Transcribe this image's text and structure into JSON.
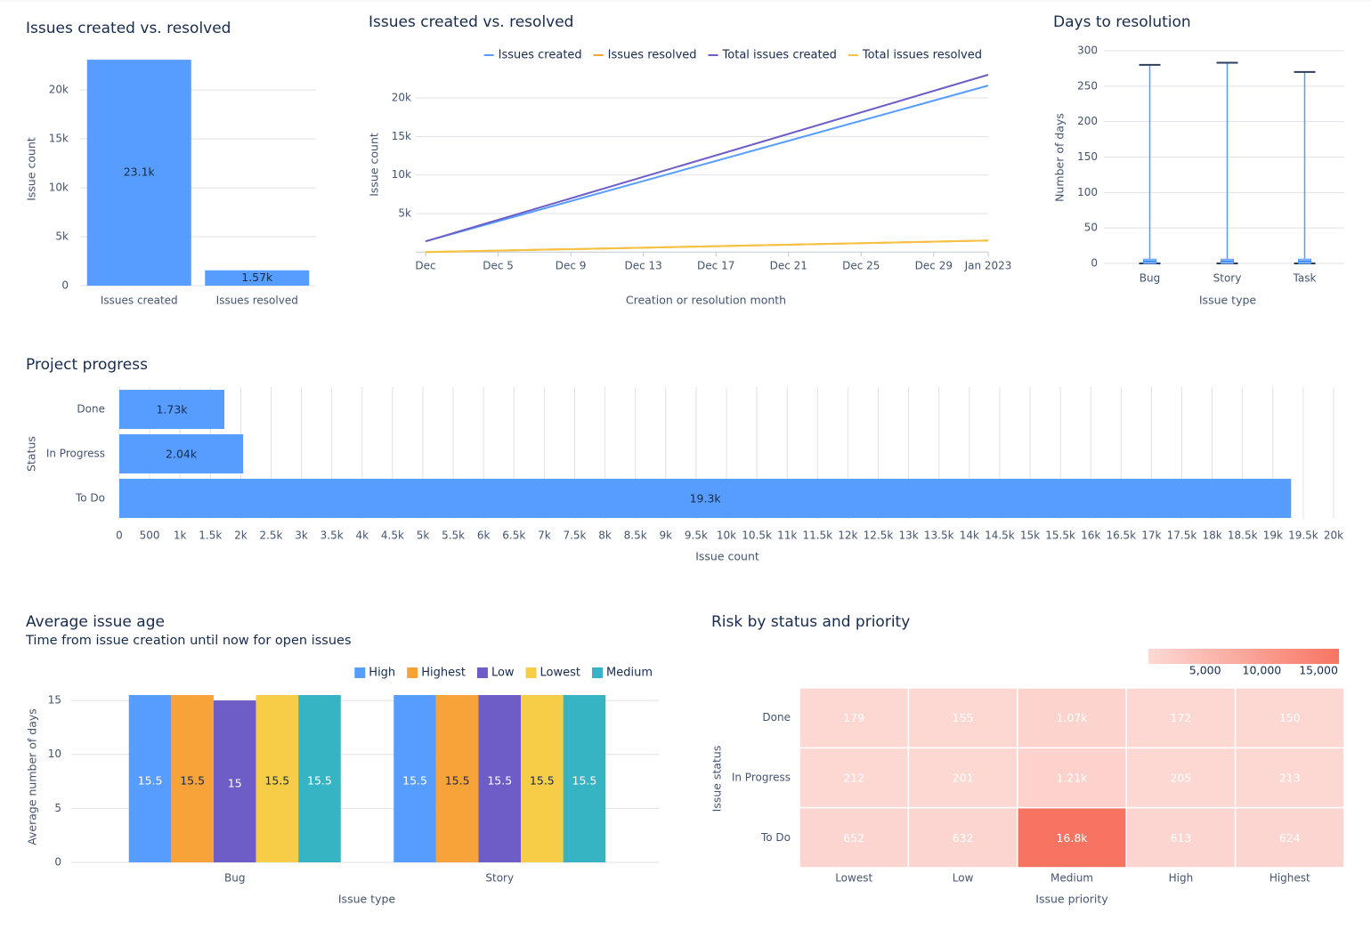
{
  "chart_data": [
    {
      "type": "bar",
      "title": "Issues created vs. resolved",
      "ylabel": "Issue count",
      "categories": [
        "Issues created",
        "Issues resolved"
      ],
      "values": [
        23100,
        1570
      ],
      "value_labels": [
        "23.1k",
        "1.57k"
      ],
      "color": "#579dff",
      "ylim": [
        0,
        23200
      ],
      "yticks": [
        0,
        {
          "value": 5000,
          "label": "5k"
        },
        {
          "value": 10000,
          "label": "10k"
        },
        {
          "value": 15000,
          "label": "15k"
        },
        {
          "value": 20000,
          "label": "20k"
        }
      ],
      "grid": true
    },
    {
      "type": "line",
      "title": "Issues created vs. resolved",
      "ylabel": "Issue count",
      "xlabel": "Creation or resolution month",
      "x": [
        0,
        31
      ],
      "xlim": [
        0,
        31
      ],
      "xticks": [
        {
          "value": 0,
          "label": "Dec"
        },
        {
          "value": 4,
          "label": "Dec 5"
        },
        {
          "value": 8,
          "label": "Dec 9"
        },
        {
          "value": 12,
          "label": "Dec 13"
        },
        {
          "value": 16,
          "label": "Dec 17"
        },
        {
          "value": 20,
          "label": "Dec 21"
        },
        {
          "value": 24,
          "label": "Dec 25"
        },
        {
          "value": 28,
          "label": "Dec 29"
        },
        {
          "value": 31,
          "label": "Jan 2023"
        }
      ],
      "ylim": [
        0,
        23000
      ],
      "yticks": [
        {
          "value": 5000,
          "label": "5k"
        },
        {
          "value": 10000,
          "label": "10k"
        },
        {
          "value": 15000,
          "label": "15k"
        },
        {
          "value": 20000,
          "label": "20k"
        }
      ],
      "grid": true,
      "legend": "top",
      "series": [
        {
          "name": "Issues created",
          "color": "#579dff",
          "values": [
            1400,
            21600
          ]
        },
        {
          "name": "Issues resolved",
          "color": "#f8a23a",
          "values": [
            0,
            1500
          ]
        },
        {
          "name": "Total issues created",
          "color": "#6e5dc6",
          "values": [
            1400,
            23000
          ]
        },
        {
          "name": "Total issues resolved",
          "color": "#f5c242",
          "values": [
            0,
            1500
          ]
        }
      ]
    },
    {
      "type": "box",
      "title": "Days to resolution",
      "ylabel": "Number of days",
      "xlabel": "Issue type",
      "categories": [
        "Bug",
        "Story",
        "Task"
      ],
      "min": [
        0,
        0,
        0
      ],
      "q1": [
        0,
        0,
        0
      ],
      "median": [
        3,
        3,
        3
      ],
      "q3": [
        6,
        6,
        6
      ],
      "max": [
        280,
        283,
        270
      ],
      "color": "#579dff",
      "ylim": [
        0,
        300
      ],
      "yticks": [
        0,
        50,
        100,
        150,
        200,
        250,
        300
      ],
      "grid": true
    },
    {
      "type": "bar",
      "horizontal": true,
      "title": "Project progress",
      "ylabel": "Status",
      "xlabel": "Issue count",
      "categories": [
        "Done",
        "In Progress",
        "To Do"
      ],
      "values": [
        1730,
        2040,
        19300
      ],
      "value_labels": [
        "1.73k",
        "2.04k",
        "19.3k"
      ],
      "color": "#579dff",
      "xlim": [
        0,
        20000
      ],
      "grid": true,
      "xticks": [
        0,
        500,
        {
          "value": 1000,
          "label": "1k"
        },
        {
          "value": 1500,
          "label": "1.5k"
        },
        {
          "value": 2000,
          "label": "2k"
        },
        {
          "value": 2500,
          "label": "2.5k"
        },
        {
          "value": 3000,
          "label": "3k"
        },
        {
          "value": 3500,
          "label": "3.5k"
        },
        {
          "value": 4000,
          "label": "4k"
        },
        {
          "value": 4500,
          "label": "4.5k"
        },
        {
          "value": 5000,
          "label": "5k"
        },
        {
          "value": 5500,
          "label": "5.5k"
        },
        {
          "value": 6000,
          "label": "6k"
        },
        {
          "value": 6500,
          "label": "6.5k"
        },
        {
          "value": 7000,
          "label": "7k"
        },
        {
          "value": 7500,
          "label": "7.5k"
        },
        {
          "value": 8000,
          "label": "8k"
        },
        {
          "value": 8500,
          "label": "8.5k"
        },
        {
          "value": 9000,
          "label": "9k"
        },
        {
          "value": 9500,
          "label": "9.5k"
        },
        {
          "value": 10000,
          "label": "10k"
        },
        {
          "value": 10500,
          "label": "10.5k"
        },
        {
          "value": 11000,
          "label": "11k"
        },
        {
          "value": 11500,
          "label": "11.5k"
        },
        {
          "value": 12000,
          "label": "12k"
        },
        {
          "value": 12500,
          "label": "12.5k"
        },
        {
          "value": 13000,
          "label": "13k"
        },
        {
          "value": 13500,
          "label": "13.5k"
        },
        {
          "value": 14000,
          "label": "14k"
        },
        {
          "value": 14500,
          "label": "14.5k"
        },
        {
          "value": 15000,
          "label": "15k"
        },
        {
          "value": 15500,
          "label": "15.5k"
        },
        {
          "value": 16000,
          "label": "16k"
        },
        {
          "value": 16500,
          "label": "16.5k"
        },
        {
          "value": 17000,
          "label": "17k"
        },
        {
          "value": 17500,
          "label": "17.5k"
        },
        {
          "value": 18000,
          "label": "18k"
        },
        {
          "value": 18500,
          "label": "18.5k"
        },
        {
          "value": 19000,
          "label": "19k"
        },
        {
          "value": 19500,
          "label": "19.5k"
        },
        {
          "value": 20000,
          "label": "20k"
        }
      ]
    },
    {
      "type": "bar",
      "title": "Average issue age",
      "subtitle": "Time from issue creation until now for open issues",
      "ylabel": "Average number of days",
      "xlabel": "Issue type",
      "categories": [
        "Bug",
        "Story"
      ],
      "legend": "top-right",
      "ylim": [
        0,
        15.5
      ],
      "yticks": [
        0,
        5,
        10,
        15
      ],
      "grid": true,
      "series": [
        {
          "name": "High",
          "color": "#579dff",
          "values": [
            15.5,
            15.5
          ]
        },
        {
          "name": "Highest",
          "color": "#f8a23a",
          "values": [
            15.5,
            15.5
          ]
        },
        {
          "name": "Low",
          "color": "#6e5dc6",
          "values": [
            15,
            15.5
          ]
        },
        {
          "name": "Lowest",
          "color": "#f5cd47",
          "values": [
            15.5,
            15.5
          ]
        },
        {
          "name": "Medium",
          "color": "#37b4c3",
          "values": [
            15.5,
            15.5
          ]
        }
      ]
    },
    {
      "type": "heatmap",
      "title": "Risk by status and priority",
      "xlabel": "Issue priority",
      "ylabel": "Issue status",
      "x": [
        "Lowest",
        "Low",
        "Medium",
        "High",
        "Highest"
      ],
      "y": [
        "Done",
        "In Progress",
        "To Do"
      ],
      "values": [
        [
          179,
          155,
          1070,
          172,
          150
        ],
        [
          212,
          201,
          1210,
          205,
          213
        ],
        [
          652,
          632,
          16800,
          613,
          624
        ]
      ],
      "value_labels": [
        [
          "179",
          "155",
          "1.07k",
          "172",
          "150"
        ],
        [
          "212",
          "201",
          "1.21k",
          "205",
          "213"
        ],
        [
          "652",
          "632",
          "16.8k",
          "613",
          "624"
        ]
      ],
      "colors": [
        "#fdd9d4",
        "#f87462"
      ],
      "zlim": [
        0,
        16800
      ],
      "zticks": [
        {
          "value": 5000,
          "label": "5,000"
        },
        {
          "value": 10000,
          "label": "10,000"
        },
        {
          "value": 15000,
          "label": "15,000"
        }
      ]
    }
  ]
}
